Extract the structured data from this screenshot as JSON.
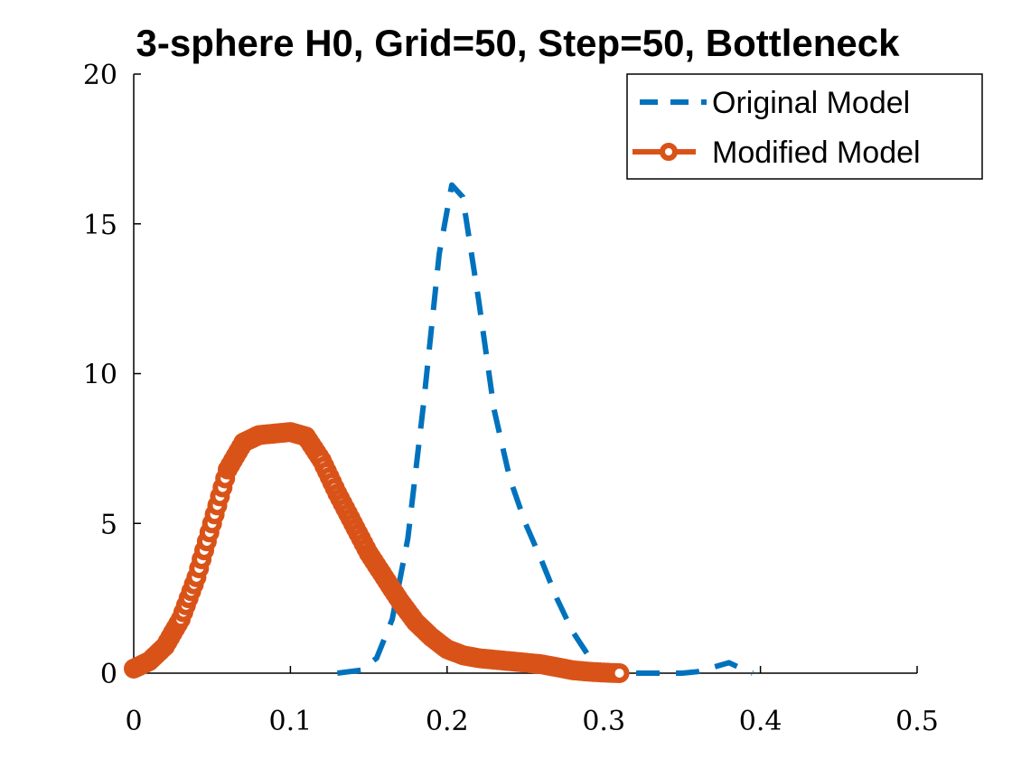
{
  "chart_data": {
    "type": "line",
    "title": "3-sphere H0, Grid=50, Step=50, Bottleneck",
    "xlabel": "",
    "ylabel": "",
    "xlim": [
      0,
      0.5
    ],
    "ylim": [
      0,
      20
    ],
    "x_ticks": [
      "0",
      "0.1",
      "0.2",
      "0.3",
      "0.4",
      "0.5"
    ],
    "y_ticks": [
      "0",
      "5",
      "10",
      "15",
      "20"
    ],
    "grid": false,
    "legend_position": "top-right",
    "series": [
      {
        "name": "Original Model",
        "color": "#0072BD",
        "style": "dashed",
        "points": [
          [
            0.13,
            0.0
          ],
          [
            0.145,
            0.1
          ],
          [
            0.155,
            0.5
          ],
          [
            0.165,
            1.8
          ],
          [
            0.175,
            4.5
          ],
          [
            0.185,
            9.0
          ],
          [
            0.195,
            14.0
          ],
          [
            0.203,
            16.3
          ],
          [
            0.21,
            15.9
          ],
          [
            0.22,
            12.5
          ],
          [
            0.23,
            8.8
          ],
          [
            0.24,
            6.5
          ],
          [
            0.25,
            5.0
          ],
          [
            0.26,
            3.8
          ],
          [
            0.27,
            2.5
          ],
          [
            0.28,
            1.4
          ],
          [
            0.29,
            0.6
          ],
          [
            0.3,
            0.15
          ],
          [
            0.31,
            0.0
          ],
          [
            0.33,
            0.0
          ],
          [
            0.35,
            0.0
          ],
          [
            0.36,
            0.05
          ],
          [
            0.37,
            0.2
          ],
          [
            0.38,
            0.35
          ],
          [
            0.39,
            0.1
          ],
          [
            0.395,
            0.0
          ]
        ]
      },
      {
        "name": "Modified Model",
        "color": "#D95319",
        "style": "line-circle",
        "points": [
          [
            0.0,
            0.15
          ],
          [
            0.01,
            0.4
          ],
          [
            0.02,
            0.9
          ],
          [
            0.03,
            1.8
          ],
          [
            0.04,
            3.2
          ],
          [
            0.05,
            5.0
          ],
          [
            0.06,
            6.8
          ],
          [
            0.07,
            7.7
          ],
          [
            0.08,
            7.95
          ],
          [
            0.09,
            8.0
          ],
          [
            0.1,
            8.05
          ],
          [
            0.11,
            7.9
          ],
          [
            0.12,
            7.1
          ],
          [
            0.13,
            6.0
          ],
          [
            0.14,
            5.0
          ],
          [
            0.15,
            4.0
          ],
          [
            0.16,
            3.2
          ],
          [
            0.17,
            2.4
          ],
          [
            0.18,
            1.7
          ],
          [
            0.19,
            1.2
          ],
          [
            0.2,
            0.8
          ],
          [
            0.21,
            0.6
          ],
          [
            0.22,
            0.5
          ],
          [
            0.23,
            0.45
          ],
          [
            0.24,
            0.4
          ],
          [
            0.25,
            0.35
          ],
          [
            0.26,
            0.3
          ],
          [
            0.27,
            0.2
          ],
          [
            0.28,
            0.1
          ],
          [
            0.29,
            0.05
          ],
          [
            0.3,
            0.02
          ],
          [
            0.31,
            0.0
          ]
        ]
      }
    ]
  }
}
